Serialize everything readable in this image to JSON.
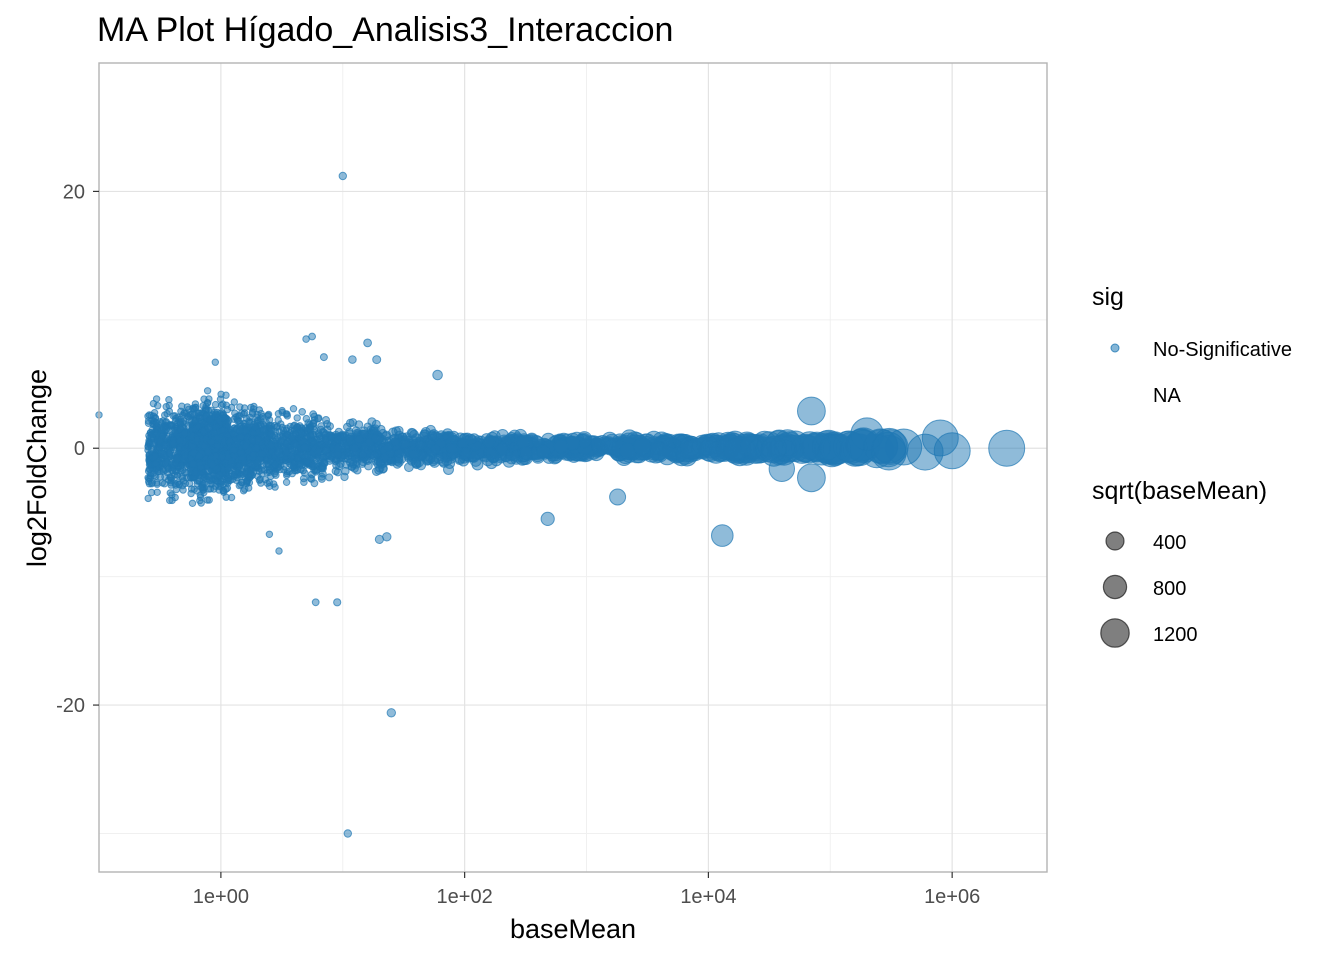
{
  "chart_data": {
    "type": "scatter",
    "title": "MA Plot Hígado_Analisis3_Interaccion",
    "xlabel": "baseMean",
    "ylabel": "log2FoldChange",
    "x_scale": "log10",
    "xlim": [
      0.1,
      6000000
    ],
    "ylim": [
      -33,
      30
    ],
    "x_ticks": [
      {
        "value": 1,
        "label": "1e+00"
      },
      {
        "value": 100,
        "label": "1e+02"
      },
      {
        "value": 10000,
        "label": "1e+04"
      },
      {
        "value": 1000000,
        "label": "1e+06"
      }
    ],
    "y_ticks": [
      {
        "value": 20,
        "label": "20"
      },
      {
        "value": 0,
        "label": "0"
      },
      {
        "value": -20,
        "label": "-20"
      }
    ],
    "grid": true,
    "point_color": "#1f78b4",
    "dense_band": [
      {
        "x": 0.4,
        "y_spread": 2.6,
        "n": 500
      },
      {
        "x": 0.8,
        "y_spread": 2.8,
        "n": 900
      },
      {
        "x": 1.6,
        "y_spread": 2.5,
        "n": 600
      },
      {
        "x": 4,
        "y_spread": 2.0,
        "n": 450
      },
      {
        "x": 12,
        "y_spread": 1.5,
        "n": 350
      },
      {
        "x": 40,
        "y_spread": 1.1,
        "n": 280
      },
      {
        "x": 150,
        "y_spread": 0.9,
        "n": 220
      },
      {
        "x": 600,
        "y_spread": 0.7,
        "n": 180
      },
      {
        "x": 3000,
        "y_spread": 0.5,
        "n": 130
      },
      {
        "x": 15000,
        "y_spread": 0.4,
        "n": 80
      },
      {
        "x": 60000,
        "y_spread": 0.35,
        "n": 40
      },
      {
        "x": 200000,
        "y_spread": 0.3,
        "n": 18
      }
    ],
    "notable_points": [
      {
        "x": 10,
        "y": 21.2
      },
      {
        "x": 11,
        "y": -30
      },
      {
        "x": 25,
        "y": -20.6
      },
      {
        "x": 6,
        "y": -12
      },
      {
        "x": 9,
        "y": -12
      },
      {
        "x": 5,
        "y": 8.5
      },
      {
        "x": 5.6,
        "y": 8.7
      },
      {
        "x": 7,
        "y": 7.1
      },
      {
        "x": 12,
        "y": 6.9
      },
      {
        "x": 16,
        "y": 8.2
      },
      {
        "x": 19,
        "y": 6.9
      },
      {
        "x": 60,
        "y": 5.7
      },
      {
        "x": 0.9,
        "y": 6.7
      },
      {
        "x": 0.1,
        "y": 2.6
      },
      {
        "x": 20,
        "y": -7.1
      },
      {
        "x": 23,
        "y": -6.9
      },
      {
        "x": 3,
        "y": -8.0
      },
      {
        "x": 2.5,
        "y": -6.7
      },
      {
        "x": 480,
        "y": -5.5
      },
      {
        "x": 1800,
        "y": -3.8
      },
      {
        "x": 13000,
        "y": -6.8
      },
      {
        "x": 70000,
        "y": 2.9
      },
      {
        "x": 70000,
        "y": -2.3
      },
      {
        "x": 40000,
        "y": -1.6
      },
      {
        "x": 200000,
        "y": 1.1
      },
      {
        "x": 800000,
        "y": 0.8
      },
      {
        "x": 600000,
        "y": -0.3
      },
      {
        "x": 1000000,
        "y": -0.2
      },
      {
        "x": 400000,
        "y": 0.1
      },
      {
        "x": 2800000,
        "y": 0.0
      },
      {
        "x": 300000,
        "y": -0.1
      }
    ],
    "legend": {
      "placement": "right",
      "color_title": "sig",
      "color_items": [
        "No-Significative",
        "NA"
      ],
      "size_title": "sqrt(baseMean)",
      "size_items": [
        {
          "value": 400,
          "label": "400"
        },
        {
          "value": 800,
          "label": "800"
        },
        {
          "value": 1200,
          "label": "1200"
        }
      ]
    }
  }
}
